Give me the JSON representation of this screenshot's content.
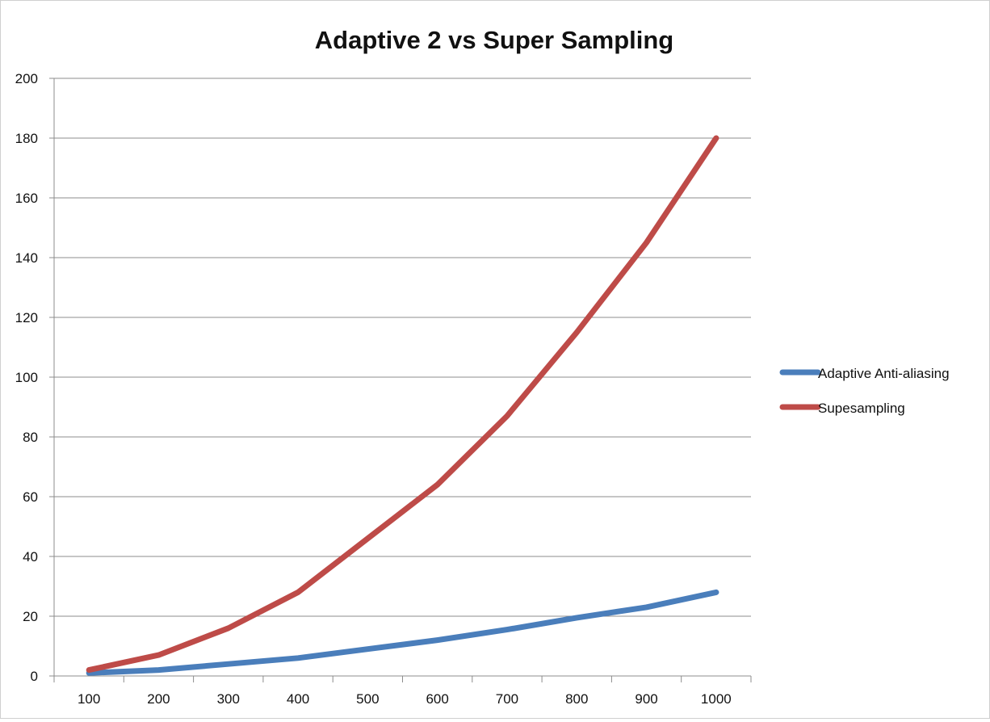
{
  "chart_data": {
    "type": "line",
    "title": "Adaptive 2 vs Super Sampling",
    "xlabel": "",
    "ylabel": "",
    "categories": [
      "100",
      "200",
      "300",
      "400",
      "500",
      "600",
      "700",
      "800",
      "900",
      "1000"
    ],
    "ylim": [
      0,
      200
    ],
    "yticks": [
      "0",
      "20",
      "40",
      "60",
      "80",
      "100",
      "120",
      "140",
      "160",
      "180",
      "200"
    ],
    "grid": "horizontal",
    "legend_position": "right",
    "series": [
      {
        "name": "Adaptive Anti-aliasing",
        "color": "#4a7ebb",
        "values": [
          1,
          2,
          4,
          6,
          9,
          12,
          15.5,
          19.5,
          23,
          28
        ]
      },
      {
        "name": "Supesampling",
        "color": "#be4b48",
        "values": [
          2,
          7,
          16,
          28,
          46,
          64,
          87,
          115,
          145,
          180
        ]
      }
    ]
  }
}
